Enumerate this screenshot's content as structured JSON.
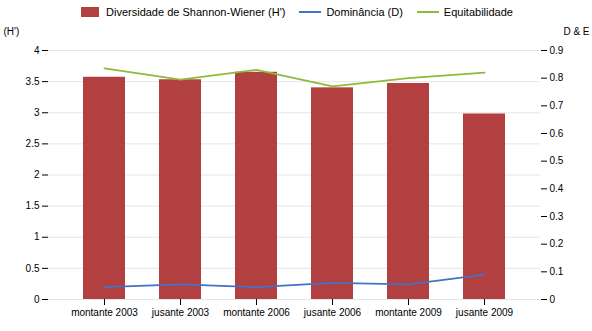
{
  "chart_data": {
    "type": "bar",
    "categories": [
      "montante 2003",
      "jusante 2003",
      "montante 2006",
      "jusante 2006",
      "montante 2009",
      "jusante 2009"
    ],
    "series": [
      {
        "name": "Diversidade de Shannon-Wiener (H')",
        "type": "bar",
        "color": "#b34040",
        "values": [
          3.57,
          3.53,
          3.65,
          3.4,
          3.47,
          2.98
        ]
      },
      {
        "name": "Dominância (D)",
        "type": "line",
        "axis": "y2",
        "color": "#4472c4",
        "values": [
          0.045,
          0.055,
          0.045,
          0.06,
          0.055,
          0.09
        ]
      },
      {
        "name": "Equitabilidade",
        "type": "line",
        "axis": "y2",
        "color": "#8fba3a",
        "values": [
          0.835,
          0.795,
          0.83,
          0.77,
          0.8,
          0.82
        ]
      }
    ],
    "ylabel": "(H')",
    "y2label": "D & E",
    "ylim": [
      0,
      4
    ],
    "yticks": [
      0,
      0.5,
      1,
      1.5,
      2,
      2.5,
      3,
      3.5,
      4
    ],
    "y2lim": [
      0,
      0.9
    ],
    "y2ticks": [
      0,
      0.1,
      0.2,
      0.3,
      0.4,
      0.5,
      0.6,
      0.7,
      0.8,
      0.9
    ],
    "grid": true,
    "legend": "top"
  }
}
